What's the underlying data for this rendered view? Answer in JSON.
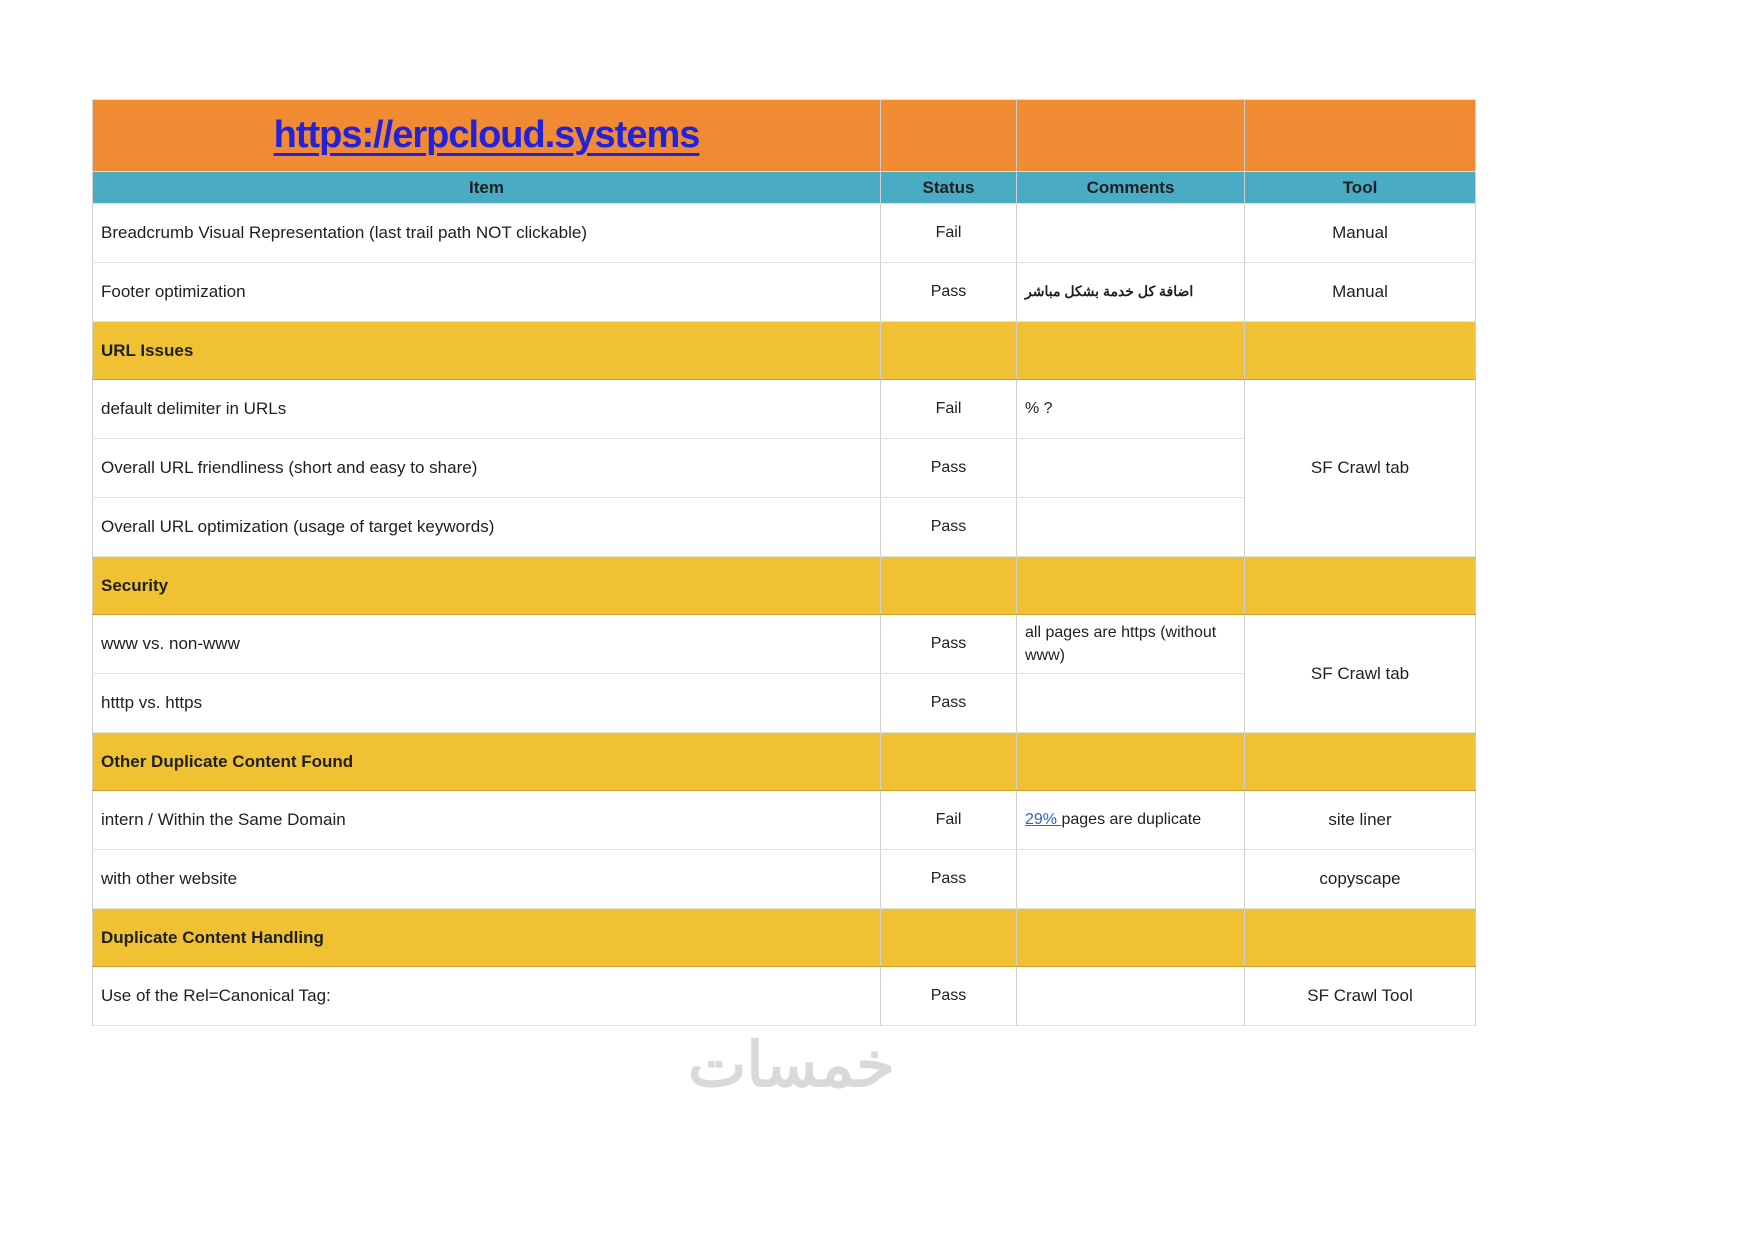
{
  "colors": {
    "header_orange": "#F08A33",
    "header_teal": "#4AABC5",
    "section_yellow": "#F0C233",
    "status_fail_pink": "#E59C9C",
    "status_pass_green": "#B2D3A7",
    "tool_gray": "#F2F2F2",
    "title_link_blue": "#2222DB",
    "comment_link_blue": "#2E63C8"
  },
  "table": {
    "title": "https://erpcloud.systems",
    "columns": [
      "Item",
      "Status",
      "Comments",
      "Tool"
    ],
    "rows": [
      {
        "type": "item",
        "item": "Breadcrumb Visual Representation (last trail path NOT clickable)",
        "status": "Fail",
        "comment": "",
        "tool": {
          "text": "Manual",
          "rowspan": 1
        }
      },
      {
        "type": "item",
        "item": "Footer optimization",
        "status": "Pass",
        "comment": "اضافة كل خدمة بشكل مباشر",
        "comment_rtl": true,
        "tool": {
          "text": "Manual",
          "rowspan": 1
        }
      },
      {
        "type": "section",
        "item": "URL Issues"
      },
      {
        "type": "item",
        "item": "default delimiter in URLs",
        "status": "Fail",
        "comment": "% ?",
        "tool": {
          "text": "SF Crawl tab",
          "rowspan": 3
        }
      },
      {
        "type": "item",
        "item": "Overall URL friendliness (short and easy to share)",
        "status": "Pass",
        "comment": ""
      },
      {
        "type": "item",
        "item": "Overall URL optimization (usage of target keywords)",
        "status": "Pass",
        "comment": ""
      },
      {
        "type": "section",
        "item": "Security"
      },
      {
        "type": "item",
        "item": "www vs. non-www",
        "status": "Pass",
        "comment": "all pages are https (without www)",
        "tool": {
          "text": "SF Crawl tab",
          "rowspan": 2
        }
      },
      {
        "type": "item",
        "item": "htttp vs. https",
        "status": "Pass",
        "comment": ""
      },
      {
        "type": "section",
        "item": "Other Duplicate Content Found"
      },
      {
        "type": "item",
        "item": "intern / Within the Same Domain",
        "status": "Fail",
        "comment_link": "29% ",
        "comment": "pages are duplicate",
        "tool": {
          "text": "site liner",
          "rowspan": 1
        }
      },
      {
        "type": "item",
        "item": "with other website",
        "status": "Pass",
        "comment": "",
        "tool": {
          "text": "copyscape",
          "rowspan": 1
        }
      },
      {
        "type": "section",
        "item": "Duplicate Content Handling"
      },
      {
        "type": "item",
        "item": "Use of the Rel=Canonical Tag:",
        "status": "Pass",
        "comment": "",
        "tool": {
          "text": "SF Crawl Tool",
          "rowspan": 1
        }
      }
    ]
  },
  "watermark": {
    "text": "خمسات"
  }
}
